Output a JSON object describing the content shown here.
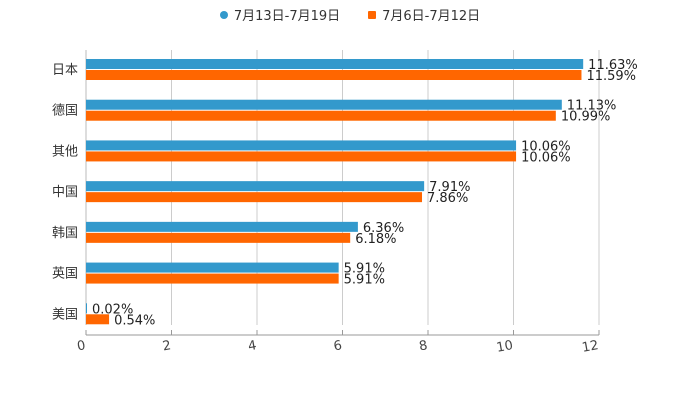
{
  "chart_data": {
    "type": "bar",
    "orientation": "horizontal",
    "title": "",
    "xlabel": "",
    "ylabel": "",
    "xlim": [
      0,
      12
    ],
    "x_ticks": [
      "0",
      "2",
      "4",
      "6",
      "8",
      "10",
      "12"
    ],
    "grid": true,
    "legend_position": "top",
    "categories": [
      "日本",
      "德国",
      "其他",
      "中国",
      "韩国",
      "英国",
      "美国"
    ],
    "series": [
      {
        "name": "7月13日-7月19日",
        "color": "#3399cc",
        "values": [
          11.63,
          11.13,
          10.06,
          7.91,
          6.36,
          5.91,
          0.02
        ],
        "labels": [
          "11.63%",
          "11.13%",
          "10.06%",
          "7.91%",
          "6.36%",
          "5.91%",
          "0.02%"
        ]
      },
      {
        "name": "7月6日-7月12日",
        "color": "#ff6600",
        "values": [
          11.59,
          10.99,
          10.06,
          7.86,
          6.18,
          5.91,
          0.54
        ],
        "labels": [
          "11.59%",
          "10.99%",
          "10.06%",
          "7.86%",
          "6.18%",
          "5.91%",
          "0.54%"
        ]
      }
    ]
  },
  "legend": {
    "items": [
      {
        "label": "7月13日-7月19日",
        "color": "#3399cc",
        "shape": "circle"
      },
      {
        "label": "7月6日-7月12日",
        "color": "#ff6600",
        "shape": "square"
      }
    ]
  }
}
